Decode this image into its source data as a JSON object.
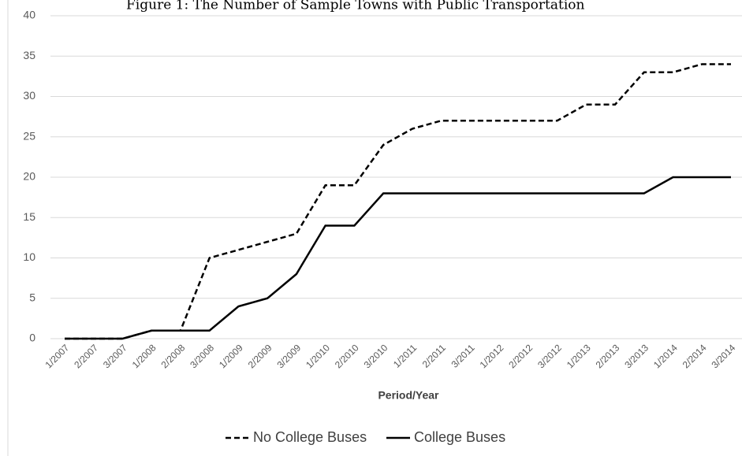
{
  "chart_data": {
    "type": "line",
    "title": "Figure 1: The Number of Sample Towns with Public Transportation",
    "x_label": "Period/Year",
    "categories": [
      "1/2007",
      "2/2007",
      "3/2007",
      "1/2008",
      "2/2008",
      "3/2008",
      "1/2009",
      "2/2009",
      "3/2009",
      "1/2010",
      "2/2010",
      "3/2010",
      "1/2011",
      "2/2011",
      "3/2011",
      "1/2012",
      "2/2012",
      "3/2012",
      "1/2013",
      "2/2013",
      "3/2013",
      "1/2014",
      "2/2014",
      "3/2014"
    ],
    "series": [
      {
        "name": "No College Buses",
        "color": "#000000",
        "dash": "dashed",
        "values": [
          0,
          0,
          0,
          1,
          1,
          10,
          11,
          12,
          13,
          19,
          19,
          24,
          26,
          27,
          27,
          27,
          27,
          27,
          29,
          29,
          33,
          33,
          34,
          34
        ]
      },
      {
        "name": "College Buses",
        "color": "#000000",
        "dash": "solid",
        "values": [
          0,
          0,
          0,
          1,
          1,
          1,
          4,
          5,
          8,
          14,
          14,
          18,
          18,
          18,
          18,
          18,
          18,
          18,
          18,
          18,
          18,
          20,
          20,
          20
        ]
      }
    ],
    "ylim": [
      0,
      40
    ],
    "yticks": [
      0,
      5,
      10,
      15,
      20,
      25,
      30,
      35,
      40
    ],
    "grid": true,
    "legend": "bottom"
  }
}
